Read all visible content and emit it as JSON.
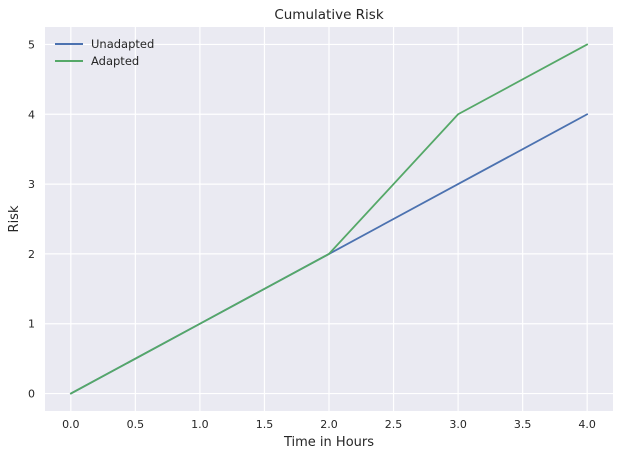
{
  "chart_data": {
    "type": "line",
    "title": "Cumulative Risk",
    "xlabel": "Time in Hours",
    "ylabel": "Risk",
    "x": [
      0.0,
      1.0,
      2.0,
      3.0,
      4.0
    ],
    "xlim": [
      -0.2,
      4.2
    ],
    "ylim": [
      -0.25,
      5.25
    ],
    "x_ticks": [
      0.0,
      0.5,
      1.0,
      1.5,
      2.0,
      2.5,
      3.0,
      3.5,
      4.0
    ],
    "x_tick_labels": [
      "0.0",
      "0.5",
      "1.0",
      "1.5",
      "2.0",
      "2.5",
      "3.0",
      "3.5",
      "4.0"
    ],
    "y_ticks": [
      0,
      1,
      2,
      3,
      4,
      5
    ],
    "y_tick_labels": [
      "0",
      "1",
      "2",
      "3",
      "4",
      "5"
    ],
    "grid": true,
    "legend_position": "top-left",
    "background_color": "#EAEAF2",
    "grid_color": "#FFFFFF",
    "series": [
      {
        "name": "Unadapted",
        "color": "#4C72B0",
        "values": [
          0,
          1,
          2,
          3,
          4
        ]
      },
      {
        "name": "Adapted",
        "color": "#55A868",
        "values": [
          0,
          1,
          2,
          4,
          5
        ]
      }
    ]
  }
}
